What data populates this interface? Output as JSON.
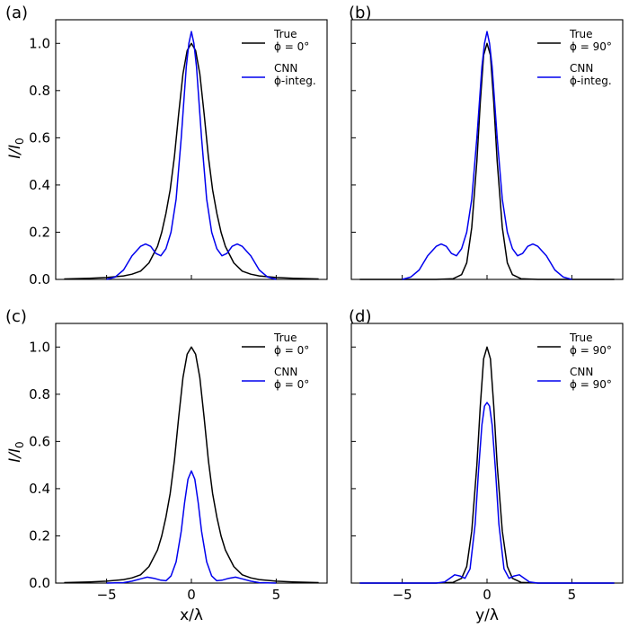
{
  "figure": {
    "y_axis_label_main": "I/I",
    "y_axis_label_sub": "0",
    "x_axis_label_left": "x/λ",
    "x_axis_label_right": "y/λ"
  },
  "chart_data": [
    {
      "type": "line",
      "panel": "(a)",
      "xlim": [
        -8,
        8
      ],
      "ylim": [
        0,
        1.1
      ],
      "xticks": [
        -5,
        0,
        5
      ],
      "yticks": [
        0.0,
        0.2,
        0.4,
        0.6,
        0.8,
        1.0
      ],
      "ytick_labels": [
        "0.0",
        "0.2",
        "0.4",
        "0.6",
        "0.8",
        "1.0"
      ],
      "xtick_labels": [],
      "legend": {
        "placement": "top-right",
        "entries": [
          {
            "line1": "True",
            "line2": "ϕ = 0°",
            "color": "#000000"
          },
          {
            "line1": "CNN",
            "line2": "ϕ-integ.",
            "color": "#0000ee"
          }
        ]
      },
      "series": [
        {
          "color": "#000000",
          "x": [
            -7.5,
            -6,
            -5,
            -4,
            -3.5,
            -3,
            -2.5,
            -2,
            -1.75,
            -1.5,
            -1.25,
            -1,
            -0.75,
            -0.5,
            -0.25,
            0,
            0.25,
            0.5,
            0.75,
            1,
            1.25,
            1.5,
            1.75,
            2,
            2.5,
            3,
            3.5,
            4,
            5,
            6,
            7.5
          ],
          "y": [
            0.002,
            0.005,
            0.008,
            0.015,
            0.022,
            0.035,
            0.07,
            0.14,
            0.2,
            0.28,
            0.38,
            0.52,
            0.7,
            0.87,
            0.97,
            1.0,
            0.97,
            0.87,
            0.7,
            0.52,
            0.38,
            0.28,
            0.2,
            0.14,
            0.07,
            0.035,
            0.022,
            0.015,
            0.008,
            0.005,
            0.002
          ]
        },
        {
          "color": "#0000ee",
          "x": [
            -5,
            -4.5,
            -4,
            -3.5,
            -3,
            -2.7,
            -2.4,
            -2.1,
            -1.8,
            -1.5,
            -1.2,
            -0.9,
            -0.6,
            -0.3,
            -0.15,
            0,
            0.15,
            0.3,
            0.6,
            0.9,
            1.2,
            1.5,
            1.8,
            2.1,
            2.4,
            2.7,
            3,
            3.5,
            4,
            4.5,
            5
          ],
          "y": [
            0.0,
            0.01,
            0.04,
            0.1,
            0.14,
            0.15,
            0.14,
            0.11,
            0.1,
            0.13,
            0.2,
            0.34,
            0.6,
            0.9,
            1.0,
            1.05,
            1.0,
            0.9,
            0.6,
            0.34,
            0.2,
            0.13,
            0.1,
            0.11,
            0.14,
            0.15,
            0.14,
            0.1,
            0.04,
            0.01,
            0.0
          ]
        }
      ]
    },
    {
      "type": "line",
      "panel": "(b)",
      "xlim": [
        -8,
        8
      ],
      "ylim": [
        0,
        1.1
      ],
      "xticks": [
        -5,
        0,
        5
      ],
      "yticks": [
        0.0,
        0.2,
        0.4,
        0.6,
        0.8,
        1.0
      ],
      "ytick_labels": [],
      "xtick_labels": [],
      "legend": {
        "placement": "top-right",
        "entries": [
          {
            "line1": "True",
            "line2": "ϕ = 90°",
            "color": "#000000"
          },
          {
            "line1": "CNN",
            "line2": "ϕ-integ.",
            "color": "#0000ee"
          }
        ]
      },
      "series": [
        {
          "color": "#000000",
          "x": [
            -7.5,
            -3,
            -2,
            -1.5,
            -1.2,
            -0.9,
            -0.6,
            -0.4,
            -0.2,
            0,
            0.2,
            0.4,
            0.6,
            0.9,
            1.2,
            1.5,
            2,
            3,
            7.5
          ],
          "y": [
            0.0,
            0.0,
            0.003,
            0.02,
            0.07,
            0.22,
            0.5,
            0.75,
            0.95,
            1.0,
            0.95,
            0.75,
            0.5,
            0.22,
            0.07,
            0.02,
            0.003,
            0.0,
            0.0
          ]
        },
        {
          "color": "#0000ee",
          "x": [
            -5,
            -4.5,
            -4,
            -3.5,
            -3,
            -2.7,
            -2.4,
            -2.1,
            -1.8,
            -1.5,
            -1.2,
            -0.9,
            -0.6,
            -0.3,
            -0.15,
            0,
            0.15,
            0.3,
            0.6,
            0.9,
            1.2,
            1.5,
            1.8,
            2.1,
            2.4,
            2.7,
            3,
            3.5,
            4,
            4.5,
            5
          ],
          "y": [
            0.0,
            0.01,
            0.04,
            0.1,
            0.14,
            0.15,
            0.14,
            0.11,
            0.1,
            0.13,
            0.2,
            0.34,
            0.6,
            0.9,
            1.0,
            1.05,
            1.0,
            0.9,
            0.6,
            0.34,
            0.2,
            0.13,
            0.1,
            0.11,
            0.14,
            0.15,
            0.14,
            0.1,
            0.04,
            0.01,
            0.0
          ]
        }
      ]
    },
    {
      "type": "line",
      "panel": "(c)",
      "xlim": [
        -8,
        8
      ],
      "ylim": [
        0,
        1.1
      ],
      "xticks": [
        -5,
        0,
        5
      ],
      "yticks": [
        0.0,
        0.2,
        0.4,
        0.6,
        0.8,
        1.0
      ],
      "ytick_labels": [
        "0.0",
        "0.2",
        "0.4",
        "0.6",
        "0.8",
        "1.0"
      ],
      "xtick_labels": [
        "−5",
        "0",
        "5"
      ],
      "legend": {
        "placement": "top-right",
        "entries": [
          {
            "line1": "True",
            "line2": "ϕ = 0°",
            "color": "#000000"
          },
          {
            "line1": "CNN",
            "line2": "ϕ = 0°",
            "color": "#0000ee"
          }
        ]
      },
      "series": [
        {
          "color": "#000000",
          "x": [
            -7.5,
            -6,
            -5,
            -4,
            -3.5,
            -3,
            -2.5,
            -2,
            -1.75,
            -1.5,
            -1.25,
            -1,
            -0.75,
            -0.5,
            -0.25,
            0,
            0.25,
            0.5,
            0.75,
            1,
            1.25,
            1.5,
            1.75,
            2,
            2.5,
            3,
            3.5,
            4,
            5,
            6,
            7.5
          ],
          "y": [
            0.002,
            0.005,
            0.008,
            0.015,
            0.022,
            0.035,
            0.07,
            0.14,
            0.2,
            0.28,
            0.38,
            0.52,
            0.7,
            0.87,
            0.97,
            1.0,
            0.97,
            0.87,
            0.7,
            0.52,
            0.38,
            0.28,
            0.2,
            0.14,
            0.07,
            0.035,
            0.022,
            0.015,
            0.008,
            0.005,
            0.002
          ]
        },
        {
          "color": "#0000ee",
          "x": [
            -5,
            -4,
            -3.5,
            -3,
            -2.6,
            -2.2,
            -1.8,
            -1.5,
            -1.2,
            -0.9,
            -0.6,
            -0.4,
            -0.2,
            0,
            0.2,
            0.4,
            0.6,
            0.9,
            1.2,
            1.5,
            1.8,
            2.2,
            2.6,
            3,
            3.5,
            4,
            5
          ],
          "y": [
            0.0,
            0.002,
            0.008,
            0.018,
            0.025,
            0.02,
            0.012,
            0.01,
            0.03,
            0.09,
            0.22,
            0.34,
            0.44,
            0.475,
            0.44,
            0.34,
            0.22,
            0.09,
            0.03,
            0.01,
            0.012,
            0.02,
            0.025,
            0.018,
            0.008,
            0.002,
            0.0
          ]
        }
      ]
    },
    {
      "type": "line",
      "panel": "(d)",
      "xlim": [
        -8,
        8
      ],
      "ylim": [
        0,
        1.1
      ],
      "xticks": [
        -5,
        0,
        5
      ],
      "yticks": [
        0.0,
        0.2,
        0.4,
        0.6,
        0.8,
        1.0
      ],
      "ytick_labels": [],
      "xtick_labels": [
        "−5",
        "0",
        "5"
      ],
      "legend": {
        "placement": "top-right",
        "entries": [
          {
            "line1": "True",
            "line2": "ϕ = 90°",
            "color": "#000000"
          },
          {
            "line1": "CNN",
            "line2": "ϕ = 90°",
            "color": "#0000ee"
          }
        ]
      },
      "series": [
        {
          "color": "#000000",
          "x": [
            -7.5,
            -3,
            -2,
            -1.5,
            -1.2,
            -0.9,
            -0.6,
            -0.4,
            -0.2,
            0,
            0.2,
            0.4,
            0.6,
            0.9,
            1.2,
            1.5,
            2,
            3,
            7.5
          ],
          "y": [
            0.0,
            0.0,
            0.003,
            0.02,
            0.07,
            0.22,
            0.5,
            0.75,
            0.95,
            1.0,
            0.95,
            0.75,
            0.5,
            0.22,
            0.07,
            0.02,
            0.003,
            0.0,
            0.0
          ]
        },
        {
          "color": "#0000ee",
          "x": [
            -7.5,
            -3,
            -2.5,
            -2.2,
            -1.9,
            -1.6,
            -1.3,
            -1.0,
            -0.7,
            -0.5,
            -0.3,
            -0.15,
            0,
            0.15,
            0.3,
            0.5,
            0.7,
            1.0,
            1.3,
            1.6,
            1.9,
            2.2,
            2.5,
            3,
            7.5
          ],
          "y": [
            0.0,
            0.0,
            0.005,
            0.02,
            0.035,
            0.03,
            0.02,
            0.06,
            0.25,
            0.48,
            0.67,
            0.75,
            0.765,
            0.75,
            0.67,
            0.48,
            0.25,
            0.06,
            0.02,
            0.03,
            0.035,
            0.02,
            0.005,
            0.0,
            0.0
          ]
        }
      ]
    }
  ]
}
